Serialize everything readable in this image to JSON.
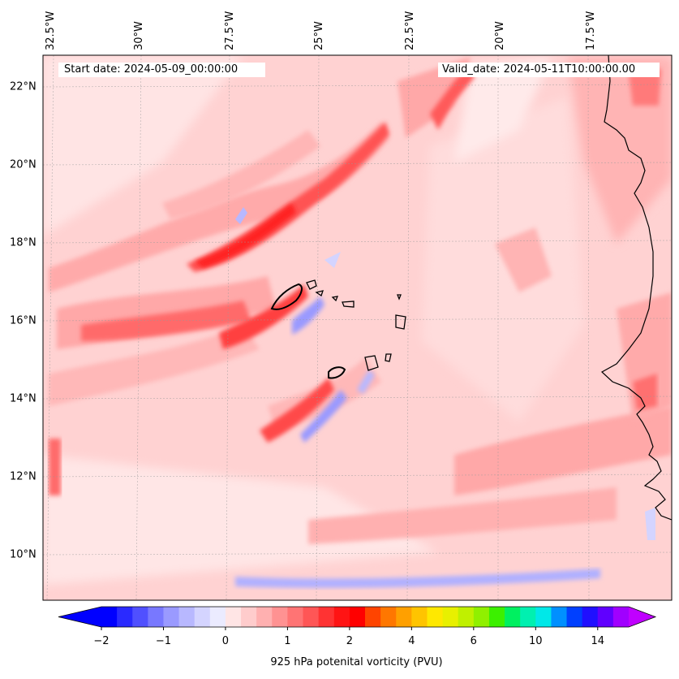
{
  "info": {
    "start_date": "Start date: 2024-05-09_00:00:00",
    "valid_date": "Valid_date: 2024-05-11T10:00:00.00"
  },
  "longitude_labels": [
    "32.5°W",
    "30°W",
    "27.5°W",
    "25°W",
    "22.5°W",
    "20°W",
    "17.5°W"
  ],
  "latitude_labels": [
    "22°N",
    "20°N",
    "18°N",
    "16°N",
    "14°N",
    "12°N",
    "10°N"
  ],
  "colorbar": {
    "label": "925 hPa potenital vorticity (PVU)",
    "tick_labels": [
      "−2",
      "−1",
      "0",
      "1",
      "2",
      "4",
      "6",
      "10",
      "14"
    ],
    "tick_values": [
      -2,
      -1,
      0,
      1,
      2,
      4,
      6,
      10,
      14
    ],
    "colors": [
      "#0000ff",
      "#2a2aff",
      "#5050ff",
      "#7878ff",
      "#9a9aff",
      "#b8b8ff",
      "#d4d4ff",
      "#ebebff",
      "#ffe5e5",
      "#ffcccc",
      "#ffb0b0",
      "#ff9292",
      "#ff7474",
      "#ff5656",
      "#ff3333",
      "#ff1414",
      "#ff0000",
      "#ff4400",
      "#ff7700",
      "#ffa000",
      "#ffc400",
      "#ffe800",
      "#e8f000",
      "#c0f000",
      "#90f000",
      "#3cf000",
      "#00f060",
      "#00f0b0",
      "#00e8e8",
      "#0090ff",
      "#0040ff",
      "#2010ff",
      "#6000ff",
      "#a000ff"
    ],
    "extend": "both"
  },
  "colors": {
    "background_low": "#ffe6e6",
    "background_mid": "#ffcccc",
    "strong_positive": "#ff2222",
    "negative": "#9a9aff",
    "coastline": "#000000"
  }
}
